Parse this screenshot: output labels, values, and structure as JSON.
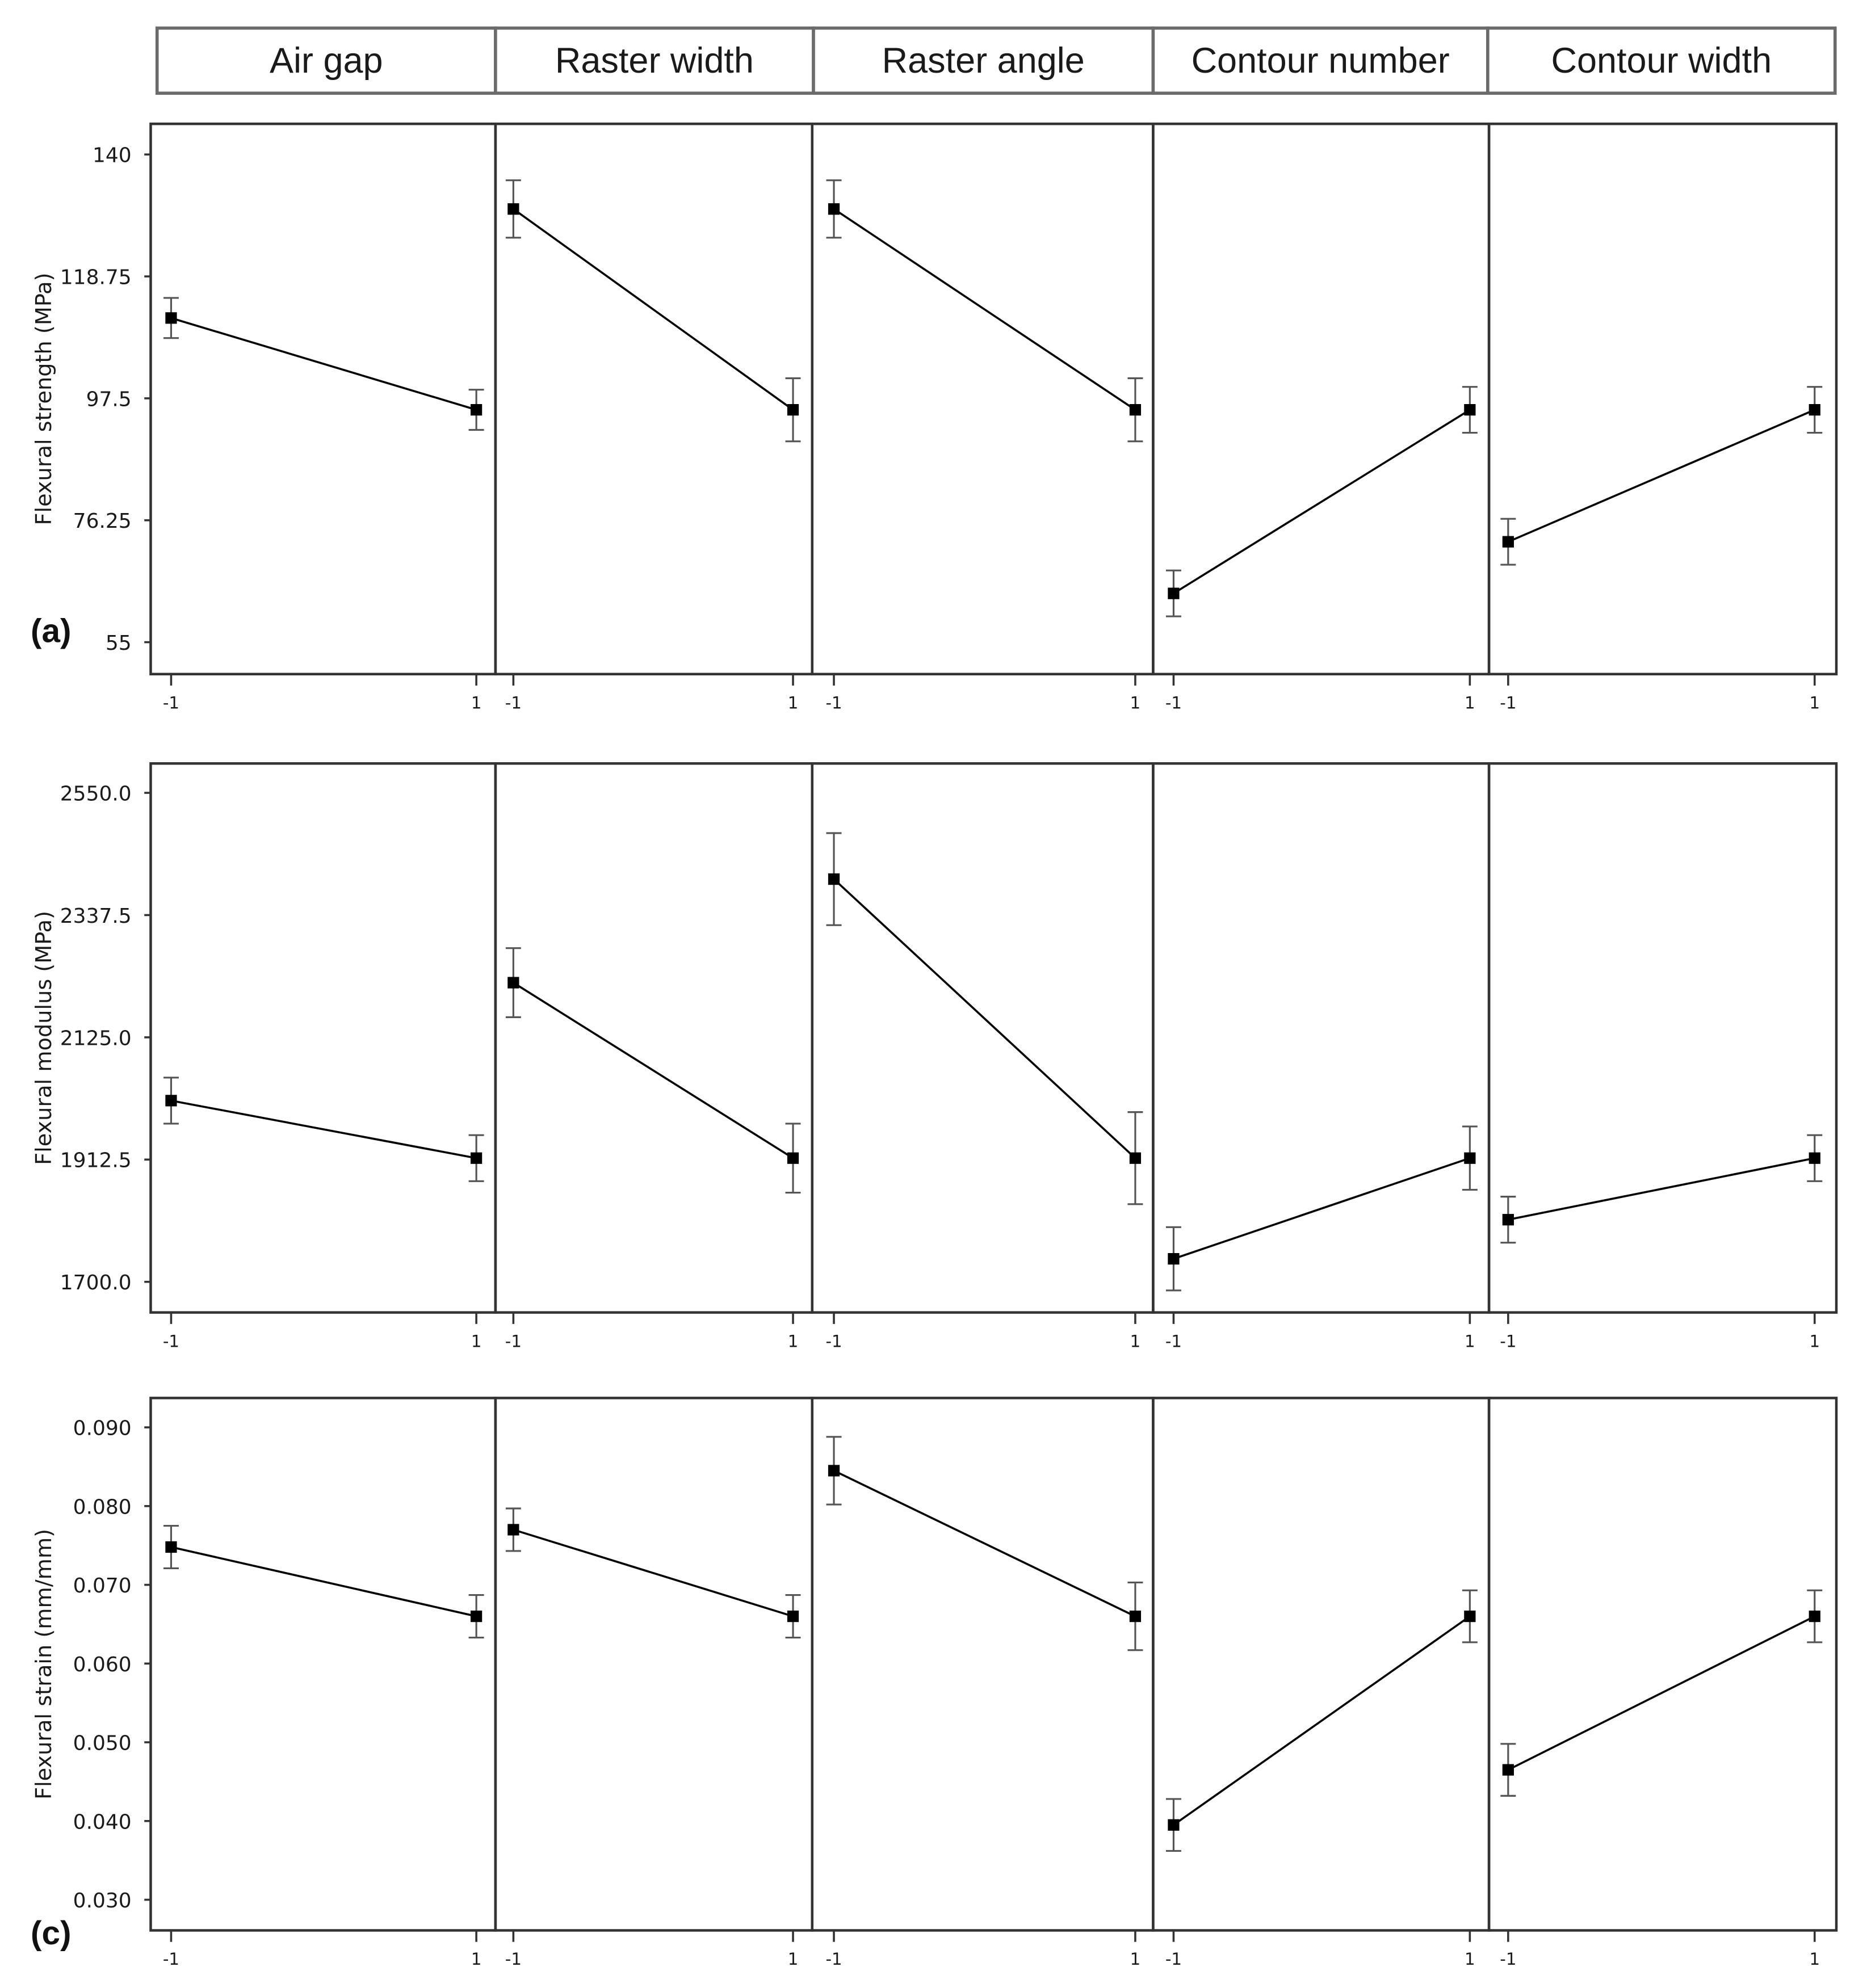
{
  "headers": [
    "Air gap",
    "Raster width",
    "Raster angle",
    "Contour number",
    "Contour width"
  ],
  "x_tick_labels": [
    "-1",
    "1"
  ],
  "panel_labels": [
    "(a)",
    "",
    "(c)"
  ],
  "colors": {
    "line": "#000000",
    "frame": "#333333",
    "errorbar": "#555555"
  },
  "chart_data": [
    {
      "type": "line",
      "ylabel": "Flexural strength (MPa)",
      "ylim": [
        55,
        140
      ],
      "yticks": [
        55,
        76.25,
        97.5,
        118.75,
        140
      ],
      "ytick_labels": [
        "55",
        "76.25",
        "97.5",
        "118.75",
        "140"
      ],
      "x": [
        -1,
        1
      ],
      "series": [
        {
          "factor": "Air gap",
          "values": [
            111.5,
            95.5
          ],
          "err": [
            3.5,
            3.5
          ]
        },
        {
          "factor": "Raster width",
          "values": [
            130.5,
            95.5
          ],
          "err": [
            5.0,
            5.5
          ]
        },
        {
          "factor": "Raster angle",
          "values": [
            130.5,
            95.5
          ],
          "err": [
            5.0,
            5.5
          ]
        },
        {
          "factor": "Contour number",
          "values": [
            63.5,
            95.5
          ],
          "err": [
            4.0,
            4.0
          ]
        },
        {
          "factor": "Contour width",
          "values": [
            72.5,
            95.5
          ],
          "err": [
            4.0,
            4.0
          ]
        }
      ]
    },
    {
      "type": "line",
      "ylabel": "Flexural modulus (MPa)",
      "ylim": [
        1700,
        2550
      ],
      "yticks": [
        1700,
        1912.5,
        2125,
        2337.5,
        2550
      ],
      "ytick_labels": [
        "1700.0",
        "1912.5",
        "2125.0",
        "2337.5",
        "2550.0"
      ],
      "x": [
        -1,
        1
      ],
      "series": [
        {
          "factor": "Air gap",
          "values": [
            2015,
            1915
          ],
          "err": [
            40,
            40
          ]
        },
        {
          "factor": "Raster width",
          "values": [
            2220,
            1915
          ],
          "err": [
            60,
            60
          ]
        },
        {
          "factor": "Raster angle",
          "values": [
            2400,
            1915
          ],
          "err": [
            80,
            80
          ]
        },
        {
          "factor": "Contour number",
          "values": [
            1740,
            1915
          ],
          "err": [
            55,
            55
          ]
        },
        {
          "factor": "Contour width",
          "values": [
            1808,
            1915
          ],
          "err": [
            40,
            40
          ]
        }
      ]
    },
    {
      "type": "line",
      "ylabel": "Flexural strain (mm/mm)",
      "ylim": [
        0.03,
        0.09
      ],
      "yticks": [
        0.03,
        0.04,
        0.05,
        0.06,
        0.07,
        0.08,
        0.09
      ],
      "ytick_labels": [
        "0.030",
        "0.040",
        "0.050",
        "0.060",
        "0.070",
        "0.080",
        "0.090"
      ],
      "x": [
        -1,
        1
      ],
      "series": [
        {
          "factor": "Air gap",
          "values": [
            0.0748,
            0.066
          ],
          "err": [
            0.0027,
            0.0027
          ]
        },
        {
          "factor": "Raster width",
          "values": [
            0.077,
            0.066
          ],
          "err": [
            0.0027,
            0.0027
          ]
        },
        {
          "factor": "Raster angle",
          "values": [
            0.0845,
            0.066
          ],
          "err": [
            0.0043,
            0.0043
          ]
        },
        {
          "factor": "Contour number",
          "values": [
            0.0395,
            0.066
          ],
          "err": [
            0.0033,
            0.0033
          ]
        },
        {
          "factor": "Contour width",
          "values": [
            0.0465,
            0.066
          ],
          "err": [
            0.0033,
            0.0033
          ]
        }
      ]
    }
  ]
}
